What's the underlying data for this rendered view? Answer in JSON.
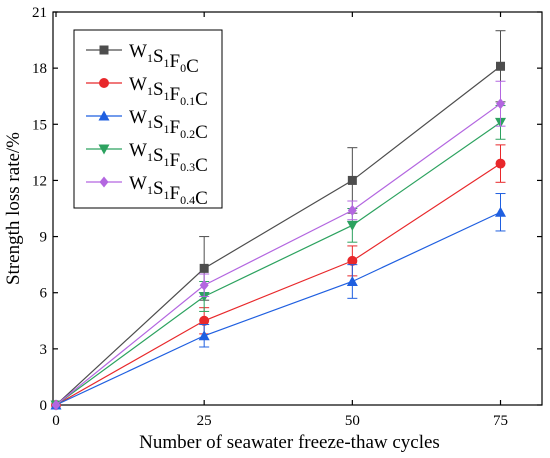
{
  "chart_data": {
    "type": "line",
    "title": "",
    "xlabel": "Number of seawater freeze-thaw cycles",
    "ylabel": "Strength loss rate/%",
    "x": [
      0,
      25,
      50,
      75
    ],
    "xticks": [
      "0",
      "25",
      "50",
      "75"
    ],
    "yticks": [
      "0",
      "3",
      "6",
      "9",
      "12",
      "15",
      "18",
      "21"
    ],
    "xlim": [
      0,
      82
    ],
    "ylim": [
      0,
      21
    ],
    "grid": false,
    "legend_position": "top-left",
    "series": [
      {
        "name": "W1S1F0C",
        "base": "W",
        "parts": [
          [
            "W",
            "1"
          ],
          [
            "S",
            "1"
          ],
          [
            "F",
            "0"
          ],
          [
            "C",
            ""
          ]
        ],
        "values": [
          0,
          7.3,
          12.0,
          18.1
        ],
        "errors": [
          0,
          1.7,
          1.75,
          1.9
        ],
        "color": "#4d4d4d",
        "marker": "square"
      },
      {
        "name": "W1S1F0.1C",
        "parts": [
          [
            "W",
            "1"
          ],
          [
            "S",
            "1"
          ],
          [
            "F",
            "0.1"
          ],
          [
            "C",
            ""
          ]
        ],
        "values": [
          0,
          4.5,
          7.7,
          12.9
        ],
        "errors": [
          0,
          0.7,
          0.8,
          1.0
        ],
        "color": "#e8282b",
        "marker": "circle"
      },
      {
        "name": "W1S1F0.2C",
        "parts": [
          [
            "W",
            "1"
          ],
          [
            "S",
            "1"
          ],
          [
            "F",
            "0.2"
          ],
          [
            "C",
            ""
          ]
        ],
        "values": [
          0,
          3.7,
          6.6,
          10.3
        ],
        "errors": [
          0,
          0.6,
          0.9,
          1.0
        ],
        "color": "#1f5fe0",
        "marker": "triangle-up"
      },
      {
        "name": "W1S1F0.3C",
        "parts": [
          [
            "W",
            "1"
          ],
          [
            "S",
            "1"
          ],
          [
            "F",
            "0.3"
          ],
          [
            "C",
            ""
          ]
        ],
        "values": [
          0,
          5.8,
          9.6,
          15.1
        ],
        "errors": [
          0,
          0.8,
          0.9,
          0.9
        ],
        "color": "#2ca25f",
        "marker": "triangle-down"
      },
      {
        "name": "W1S1F0.4C",
        "parts": [
          [
            "W",
            "1"
          ],
          [
            "S",
            "1"
          ],
          [
            "F",
            "0.4"
          ],
          [
            "C",
            ""
          ]
        ],
        "values": [
          0,
          6.4,
          10.4,
          16.1
        ],
        "errors": [
          0,
          0.6,
          0.5,
          1.2
        ],
        "color": "#b366e0",
        "marker": "diamond"
      }
    ]
  }
}
